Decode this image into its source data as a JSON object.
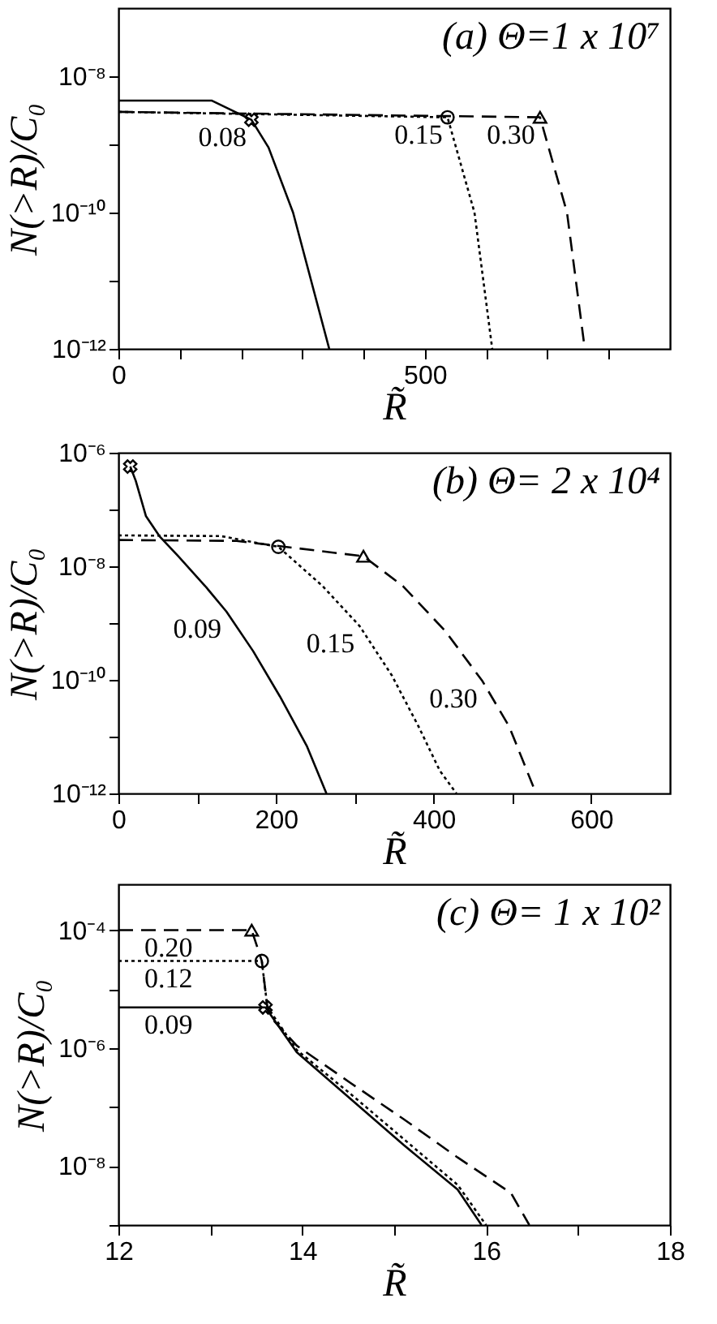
{
  "chart_data": [
    {
      "type": "line",
      "title": "(a) Θ=1 x 10⁷",
      "xlabel": "R̃",
      "ylabel": "N(>R)/C₀",
      "log": "y",
      "xlim": [
        0,
        900
      ],
      "xticks": [
        0,
        {
          "value": 100,
          "label": null
        },
        {
          "value": 200,
          "label": null
        },
        {
          "value": 300,
          "label": null
        },
        {
          "value": 400,
          "label": null
        },
        500,
        {
          "value": 600,
          "label": null
        },
        {
          "value": 700,
          "label": null
        },
        {
          "value": 800,
          "label": null
        }
      ],
      "ylim": [
        1e-12,
        1e-07
      ],
      "yticks": [
        {
          "value": 1e-12,
          "label": "10⁻¹²"
        },
        {
          "value": 1e-11,
          "label": null
        },
        {
          "value": 1e-10,
          "label": "10⁻¹⁰"
        },
        {
          "value": 1e-09,
          "label": null
        },
        {
          "value": 1e-08,
          "label": "10⁻⁸"
        }
      ],
      "series": [
        {
          "type": "line",
          "line_style": "solid",
          "color": "#000000",
          "x": [
            0,
            152,
            217,
            245,
            285,
            344
          ],
          "values": [
            4.4e-09,
            4.4e-09,
            2.3e-09,
            9e-10,
            1e-10,
            1e-12
          ]
        },
        {
          "type": "line",
          "line_style": "dotted",
          "color": "#000000",
          "x": [
            0,
            537,
            581,
            610
          ],
          "values": [
            3e-09,
            2.5e-09,
            1e-10,
            1e-12
          ]
        },
        {
          "type": "line",
          "line_style": "dashed",
          "color": "#000000",
          "x": [
            0,
            688,
            732,
            761
          ],
          "values": [
            3e-09,
            2.5e-09,
            1e-10,
            1e-12
          ]
        },
        {
          "type": "scatter",
          "marker": "cross",
          "color": "#000000",
          "x": [
            217
          ],
          "values": [
            2.3e-09
          ]
        },
        {
          "type": "scatter",
          "marker": "circle",
          "color": "#000000",
          "x": [
            537
          ],
          "values": [
            2.5e-09
          ]
        },
        {
          "type": "scatter",
          "marker": "triangle",
          "color": "#000000",
          "x": [
            688
          ],
          "values": [
            2.5e-09
          ]
        }
      ],
      "annotations": [
        {
          "text": "0.08",
          "x": 217,
          "y": 2.3e-09
        },
        {
          "text": "0.15",
          "x": 537,
          "y": 2.5e-09
        },
        {
          "text": "0.30",
          "x": 688,
          "y": 2.5e-09
        }
      ]
    },
    {
      "type": "line",
      "title": "(b) Θ= 2 x 10⁴",
      "xlabel": "R̃",
      "ylabel": "N(>R)/C₀",
      "log": "y",
      "xlim": [
        0,
        700
      ],
      "xticks": [
        0,
        {
          "value": 100,
          "label": null
        },
        200,
        {
          "value": 300,
          "label": null
        },
        400,
        {
          "value": 500,
          "label": null
        },
        600
      ],
      "ylim": [
        1e-12,
        1e-06
      ],
      "yticks": [
        {
          "value": 1e-12,
          "label": "10⁻¹²"
        },
        {
          "value": 1e-11,
          "label": null
        },
        {
          "value": 1e-10,
          "label": "10⁻¹⁰"
        },
        {
          "value": 1e-09,
          "label": null
        },
        {
          "value": 1e-08,
          "label": "10⁻⁸"
        },
        {
          "value": 1e-07,
          "label": null
        },
        {
          "value": 1e-06,
          "label": "10⁻⁶"
        }
      ],
      "series": [
        {
          "type": "line",
          "line_style": "solid",
          "color": "#000000",
          "x": [
            15,
            22,
            35,
            52,
            76,
            110,
            137,
            171,
            205,
            239,
            264
          ],
          "values": [
            5.7e-07,
            3.2e-07,
            7.6e-08,
            3.4e-08,
            1.5e-08,
            4.5e-09,
            1.6e-09,
            3.2e-10,
            5.1e-11,
            6.9e-12,
            1e-12
          ]
        },
        {
          "type": "line",
          "line_style": "dotted",
          "color": "#000000",
          "x": [
            0,
            130,
            203,
            259,
            306,
            347,
            381,
            408,
            429
          ],
          "values": [
            3.5e-08,
            3.4e-08,
            2.2e-08,
            4.5e-09,
            8.9e-10,
            1.2e-10,
            1.5e-11,
            2.5e-12,
            1e-12
          ]
        },
        {
          "type": "line",
          "line_style": "dashed",
          "color": "#000000",
          "x": [
            0,
            150,
            311,
            361,
            415,
            462,
            496,
            530
          ],
          "values": [
            2.9e-08,
            2.8e-08,
            1.5e-08,
            4.5e-09,
            7.2e-10,
            9.5e-11,
            1.5e-11,
            1e-12
          ]
        },
        {
          "type": "scatter",
          "marker": "cross",
          "color": "#000000",
          "x": [
            15
          ],
          "values": [
            5.7e-07
          ]
        },
        {
          "type": "scatter",
          "marker": "circle",
          "color": "#000000",
          "x": [
            203
          ],
          "values": [
            2.2e-08
          ]
        },
        {
          "type": "scatter",
          "marker": "triangle",
          "color": "#000000",
          "x": [
            311
          ],
          "values": [
            1.5e-08
          ]
        }
      ],
      "annotations": [
        {
          "text": "0.09",
          "x": 137,
          "y": 1.6e-09
        },
        {
          "text": "0.15",
          "x": 306,
          "y": 8.9e-10
        },
        {
          "text": "0.30",
          "x": 462,
          "y": 9.5e-11
        }
      ]
    },
    {
      "type": "line",
      "title": "(c) Θ= 1 x 10²",
      "xlabel": "R̃",
      "ylabel": "N(>R)/C₀",
      "log": "y",
      "xlim": [
        12,
        18
      ],
      "xticks": [
        12,
        {
          "value": 13,
          "label": null
        },
        14,
        {
          "value": 15,
          "label": null
        },
        16,
        {
          "value": 17,
          "label": null
        },
        18
      ],
      "ylim": [
        1e-09,
        0.0006
      ],
      "yticks": [
        {
          "value": 1e-09,
          "label": null
        },
        {
          "value": 1e-08,
          "label": "10⁻⁸"
        },
        {
          "value": 1e-07,
          "label": null
        },
        {
          "value": 1e-06,
          "label": "10⁻⁶"
        },
        {
          "value": 1e-05,
          "label": null
        },
        {
          "value": 0.0001,
          "label": "10⁻⁴"
        }
      ],
      "series": [
        {
          "type": "line",
          "line_style": "solid",
          "color": "#000000",
          "x": [
            12,
            13.6,
            13.94,
            14.52,
            15.1,
            15.69,
            15.95
          ],
          "values": [
            4.9e-06,
            4.9e-06,
            8.5e-07,
            1.4e-07,
            2.3e-08,
            4e-09,
            1e-09
          ]
        },
        {
          "type": "line",
          "line_style": "dotted",
          "color": "#000000",
          "x": [
            12,
            13.56,
            13.62,
            13.94,
            14.52,
            15.1,
            15.69,
            16.0
          ],
          "values": [
            3e-05,
            3e-05,
            5e-06,
            9.3e-07,
            1.7e-07,
            2.9e-08,
            4.8e-09,
            1e-09
          ]
        },
        {
          "type": "line",
          "line_style": "dashed",
          "color": "#000000",
          "x": [
            12,
            13.45,
            13.56,
            13.62,
            13.7,
            13.94,
            14.52,
            15.1,
            15.69,
            16.27,
            16.47
          ],
          "values": [
            0.0001,
            0.0001,
            3e-05,
            5e-06,
            2.8e-06,
            1.1e-06,
            2.6e-07,
            6.3e-08,
            1.4e-08,
            3.5e-09,
            1e-09
          ]
        },
        {
          "type": "scatter",
          "marker": "cross",
          "color": "#000000",
          "x": [
            13.6
          ],
          "values": [
            4.9e-06
          ]
        },
        {
          "type": "scatter",
          "marker": "circle",
          "color": "#000000",
          "x": [
            13.56
          ],
          "values": [
            3e-05
          ]
        },
        {
          "type": "scatter",
          "marker": "triangle",
          "color": "#000000",
          "x": [
            13.45
          ],
          "values": [
            0.0001
          ]
        }
      ],
      "annotations": [
        {
          "text": "0.20",
          "x": 12.86,
          "y": 0.0001
        },
        {
          "text": "0.12",
          "x": 12.86,
          "y": 3e-05
        },
        {
          "text": "0.09",
          "x": 12.86,
          "y": 4.9e-06
        }
      ]
    }
  ]
}
